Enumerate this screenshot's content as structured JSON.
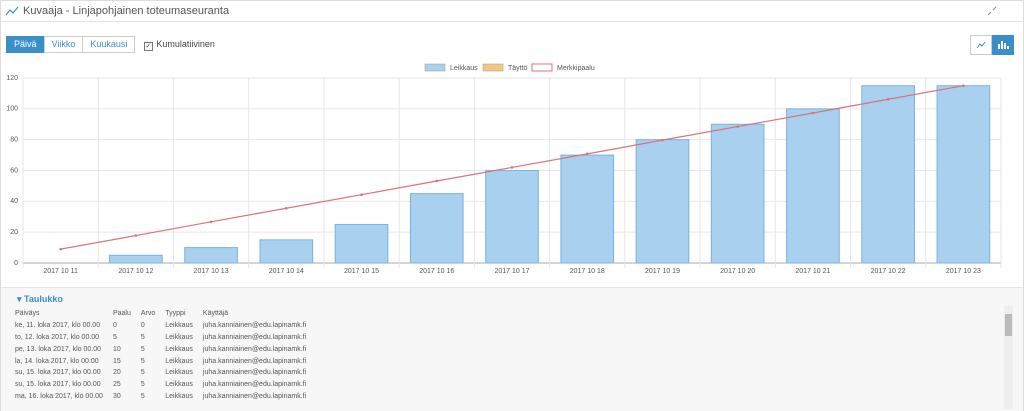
{
  "header": {
    "title": "Kuvaaja - Linjapohjainen toteumaseuranta"
  },
  "toolbar": {
    "buttons": [
      "Päivä",
      "Viikko",
      "Kuukausi"
    ],
    "checkbox": "Kumulatiivinen"
  },
  "chart_data": {
    "type": "bar",
    "categories": [
      "2017 10 11",
      "2017 10 12",
      "2017 10 13",
      "2017 10 14",
      "2017 10 15",
      "2017 10 16",
      "2017 10 17",
      "2017 10 18",
      "2017 10 19",
      "2017 10 20",
      "2017 10 21",
      "2017 10 22",
      "2017 10 23"
    ],
    "series": [
      {
        "name": "Leikkaus",
        "type": "bar",
        "color": "#a9d0ee",
        "values": [
          0,
          5,
          10,
          15,
          25,
          45,
          60,
          70,
          80,
          90,
          100,
          115,
          115
        ]
      },
      {
        "name": "Täyttö",
        "type": "bar",
        "color": "#f5c77e",
        "values": [
          null,
          null,
          null,
          null,
          null,
          null,
          null,
          null,
          null,
          null,
          null,
          null,
          null
        ]
      },
      {
        "name": "Merkkipaalu",
        "type": "line",
        "color": "#d9737a",
        "values": [
          9,
          17.8,
          26.7,
          35.5,
          44.3,
          53.2,
          62,
          70.8,
          79.7,
          88.5,
          97.3,
          106.2,
          115
        ]
      }
    ],
    "ylim": [
      0,
      120
    ],
    "yticks": [
      0,
      20,
      40,
      60,
      80,
      100,
      120
    ],
    "grid": true,
    "legend": "top"
  },
  "table": {
    "title": "Taulukko",
    "columns": [
      "Päiväys",
      "Paalu",
      "Arvo",
      "Tyyppi",
      "Käyttäjä"
    ],
    "rows": [
      [
        "ke, 11. loka 2017, klo 00.00",
        0,
        0,
        "Leikkaus",
        "juha.kanniainen@edu.lapinamk.fi"
      ],
      [
        "to, 12. loka 2017, klo 00.00",
        5,
        5,
        "Leikkaus",
        "juha.kanniainen@edu.lapinamk.fi"
      ],
      [
        "pe, 13. loka 2017, klo 00.00",
        10,
        5,
        "Leikkaus",
        "juha.kanniainen@edu.lapinamk.fi"
      ],
      [
        "la, 14. loka 2017, klo 00.00",
        15,
        5,
        "Leikkaus",
        "juha.kanniainen@edu.lapinamk.fi"
      ],
      [
        "su, 15. loka 2017, klo 00.00",
        20,
        5,
        "Leikkaus",
        "juha.kanniainen@edu.lapinamk.fi"
      ],
      [
        "su, 15. loka 2017, klo 00.00",
        25,
        5,
        "Leikkaus",
        "juha.kanniainen@edu.lapinamk.fi"
      ],
      [
        "ma, 16. loka 2017, klo 00.00",
        30,
        5,
        "Leikkaus",
        "juha.kanniainen@edu.lapinamk.fi"
      ]
    ]
  }
}
